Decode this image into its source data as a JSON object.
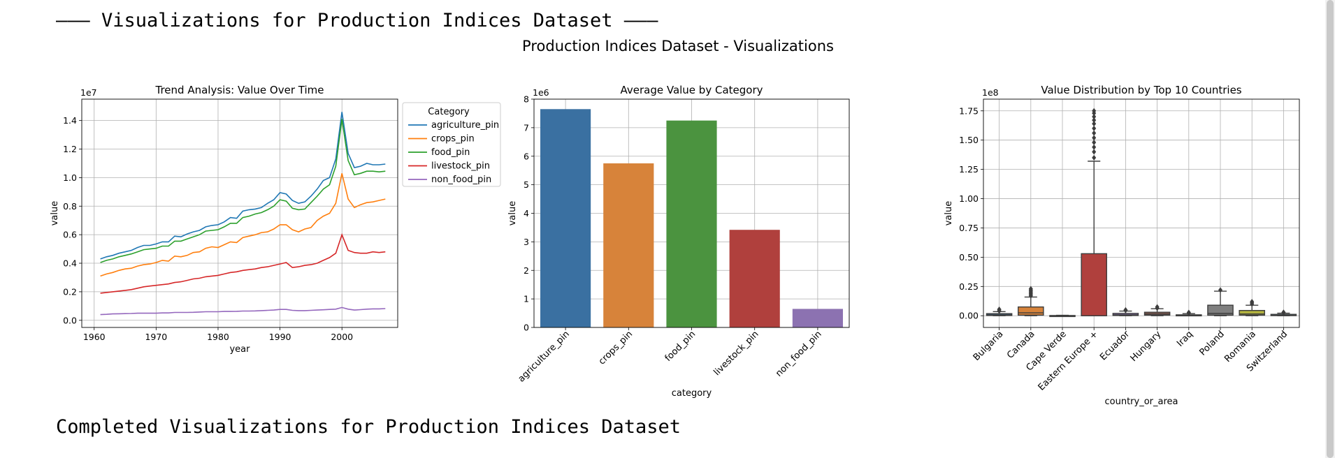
{
  "header": {
    "text": "——— Visualizations for Production Indices Dataset ———"
  },
  "footer": {
    "text": "Completed Visualizations for Production Indices Dataset"
  },
  "figure": {
    "suptitle": "Production Indices Dataset - Visualizations"
  },
  "chart_data": [
    {
      "type": "line",
      "title": "Trend Analysis: Value Over Time",
      "xlabel": "year",
      "ylabel": "value",
      "offset_label": "1e7",
      "xlim": [
        1958,
        2009
      ],
      "ylim": [
        -0.05,
        1.55
      ],
      "x_ticks": [
        1960,
        1970,
        1980,
        1990,
        2000
      ],
      "y_ticks": [
        0.0,
        0.2,
        0.4,
        0.6,
        0.8,
        1.0,
        1.2,
        1.4
      ],
      "y_tick_labels": [
        "0.0",
        "0.2",
        "0.4",
        "0.6",
        "0.8",
        "1.0",
        "1.2",
        "1.4"
      ],
      "grid": true,
      "legend": {
        "title": "Category",
        "placement": "outside right"
      },
      "x": [
        1961,
        1962,
        1963,
        1964,
        1965,
        1966,
        1967,
        1968,
        1969,
        1970,
        1971,
        1972,
        1973,
        1974,
        1975,
        1976,
        1977,
        1978,
        1979,
        1980,
        1981,
        1982,
        1983,
        1984,
        1985,
        1986,
        1987,
        1988,
        1989,
        1990,
        1991,
        1992,
        1993,
        1994,
        1995,
        1996,
        1997,
        1998,
        1999,
        2000,
        2001,
        2002,
        2003,
        2004,
        2005,
        2006,
        2007
      ],
      "series": [
        {
          "name": "agriculture_pin",
          "color": "#1f77b4",
          "values": [
            0.43,
            0.445,
            0.455,
            0.47,
            0.48,
            0.49,
            0.51,
            0.525,
            0.525,
            0.535,
            0.55,
            0.55,
            0.59,
            0.585,
            0.605,
            0.62,
            0.63,
            0.655,
            0.665,
            0.67,
            0.69,
            0.72,
            0.715,
            0.765,
            0.775,
            0.78,
            0.79,
            0.82,
            0.845,
            0.895,
            0.885,
            0.84,
            0.82,
            0.83,
            0.87,
            0.92,
            0.98,
            1.0,
            1.13,
            1.46,
            1.17,
            1.07,
            1.08,
            1.1,
            1.09,
            1.09,
            1.095
          ]
        },
        {
          "name": "crops_pin",
          "color": "#ff7f0e",
          "values": [
            0.31,
            0.325,
            0.335,
            0.35,
            0.36,
            0.365,
            0.38,
            0.39,
            0.395,
            0.405,
            0.42,
            0.415,
            0.45,
            0.445,
            0.455,
            0.475,
            0.48,
            0.505,
            0.515,
            0.51,
            0.53,
            0.55,
            0.545,
            0.58,
            0.59,
            0.6,
            0.615,
            0.62,
            0.64,
            0.67,
            0.67,
            0.635,
            0.62,
            0.64,
            0.65,
            0.7,
            0.73,
            0.75,
            0.82,
            1.03,
            0.85,
            0.79,
            0.81,
            0.825,
            0.83,
            0.84,
            0.85
          ]
        },
        {
          "name": "food_pin",
          "color": "#2ca02c",
          "values": [
            0.405,
            0.42,
            0.43,
            0.445,
            0.455,
            0.465,
            0.48,
            0.495,
            0.5,
            0.505,
            0.52,
            0.52,
            0.555,
            0.555,
            0.57,
            0.585,
            0.6,
            0.625,
            0.63,
            0.635,
            0.655,
            0.68,
            0.68,
            0.72,
            0.73,
            0.745,
            0.755,
            0.775,
            0.8,
            0.845,
            0.835,
            0.785,
            0.775,
            0.78,
            0.825,
            0.87,
            0.92,
            0.95,
            1.08,
            1.41,
            1.12,
            1.02,
            1.03,
            1.045,
            1.045,
            1.04,
            1.045
          ]
        },
        {
          "name": "livestock_pin",
          "color": "#d62728",
          "values": [
            0.19,
            0.195,
            0.2,
            0.205,
            0.21,
            0.215,
            0.225,
            0.235,
            0.24,
            0.245,
            0.25,
            0.255,
            0.265,
            0.27,
            0.28,
            0.29,
            0.295,
            0.305,
            0.31,
            0.315,
            0.325,
            0.335,
            0.34,
            0.35,
            0.355,
            0.36,
            0.37,
            0.375,
            0.385,
            0.395,
            0.405,
            0.37,
            0.375,
            0.385,
            0.39,
            0.4,
            0.42,
            0.44,
            0.47,
            0.6,
            0.49,
            0.475,
            0.47,
            0.47,
            0.48,
            0.475,
            0.48
          ]
        },
        {
          "name": "non_food_pin",
          "color": "#9467bd",
          "values": [
            0.04,
            0.042,
            0.045,
            0.046,
            0.047,
            0.048,
            0.05,
            0.05,
            0.05,
            0.05,
            0.052,
            0.052,
            0.055,
            0.055,
            0.055,
            0.056,
            0.058,
            0.06,
            0.06,
            0.06,
            0.062,
            0.062,
            0.063,
            0.065,
            0.065,
            0.066,
            0.068,
            0.07,
            0.072,
            0.076,
            0.076,
            0.07,
            0.068,
            0.068,
            0.07,
            0.072,
            0.074,
            0.076,
            0.078,
            0.09,
            0.078,
            0.072,
            0.075,
            0.078,
            0.08,
            0.08,
            0.082
          ]
        }
      ]
    },
    {
      "type": "bar",
      "title": "Average Value by Category",
      "xlabel": "category",
      "ylabel": "value",
      "offset_label": "1e6",
      "ylim": [
        0,
        8
      ],
      "y_ticks": [
        0,
        1,
        2,
        3,
        4,
        5,
        6,
        7,
        8
      ],
      "grid": true,
      "categories": [
        "agriculture_pin",
        "crops_pin",
        "food_pin",
        "livestock_pin",
        "non_food_pin"
      ],
      "values": [
        7.65,
        5.75,
        7.25,
        3.42,
        0.65
      ],
      "colors": [
        "#3a70a1",
        "#d7833a",
        "#4b933f",
        "#b0403d",
        "#8c72b1"
      ]
    },
    {
      "type": "box",
      "title": "Value Distribution by Top 10 Countries",
      "xlabel": "country_or_area",
      "ylabel": "value",
      "offset_label": "1e8",
      "ylim": [
        -0.1,
        1.85
      ],
      "y_ticks": [
        0.0,
        0.25,
        0.5,
        0.75,
        1.0,
        1.25,
        1.5,
        1.75
      ],
      "y_tick_labels": [
        "0.00",
        "0.25",
        "0.50",
        "0.75",
        "1.00",
        "1.25",
        "1.50",
        "1.75"
      ],
      "grid": true,
      "categories": [
        "Bulgaria",
        "Canada",
        "Cape Verde",
        "Eastern Europe +",
        "Ecuador",
        "Hungary",
        "Iraq",
        "Poland",
        "Romania",
        "Switzerland"
      ],
      "colors": [
        "#3a70a1",
        "#d7833a",
        "#4b933f",
        "#b0403d",
        "#8c72b1",
        "#8a5a4e",
        "#d184bd",
        "#7f7f7f",
        "#b3b340",
        "#3aa9b6"
      ],
      "boxes": [
        {
          "q1": 0.002,
          "median": 0.008,
          "q3": 0.018,
          "whisker_low": 0.0,
          "whisker_high": 0.035,
          "outliers": [
            0.04,
            0.05,
            0.055
          ]
        },
        {
          "q1": 0.005,
          "median": 0.025,
          "q3": 0.075,
          "whisker_low": 0.0,
          "whisker_high": 0.16,
          "outliers": [
            0.17,
            0.18,
            0.19,
            0.2,
            0.21,
            0.22,
            0.23
          ]
        },
        {
          "q1": 0.0,
          "median": 0.0,
          "q3": 0.002,
          "whisker_low": 0.0,
          "whisker_high": 0.004,
          "outliers": []
        },
        {
          "q1": 0.0,
          "median": 0.0,
          "q3": 0.53,
          "whisker_low": 0.0,
          "whisker_high": 1.32,
          "outliers": [
            1.35,
            1.4,
            1.44,
            1.48,
            1.52,
            1.56,
            1.6,
            1.64,
            1.67,
            1.7,
            1.73,
            1.75
          ]
        },
        {
          "q1": 0.002,
          "median": 0.008,
          "q3": 0.02,
          "whisker_low": 0.0,
          "whisker_high": 0.04,
          "outliers": [
            0.045,
            0.05
          ]
        },
        {
          "q1": 0.005,
          "median": 0.015,
          "q3": 0.03,
          "whisker_low": 0.0,
          "whisker_high": 0.06,
          "outliers": [
            0.065,
            0.075
          ]
        },
        {
          "q1": 0.0,
          "median": 0.003,
          "q3": 0.008,
          "whisker_low": 0.0,
          "whisker_high": 0.018,
          "outliers": [
            0.022,
            0.028
          ]
        },
        {
          "q1": 0.005,
          "median": 0.02,
          "q3": 0.09,
          "whisker_low": 0.0,
          "whisker_high": 0.21,
          "outliers": [
            0.22
          ]
        },
        {
          "q1": 0.005,
          "median": 0.015,
          "q3": 0.045,
          "whisker_low": 0.0,
          "whisker_high": 0.09,
          "outliers": [
            0.1,
            0.11,
            0.12
          ]
        },
        {
          "q1": 0.001,
          "median": 0.004,
          "q3": 0.012,
          "whisker_low": 0.0,
          "whisker_high": 0.022,
          "outliers": [
            0.026,
            0.03
          ]
        }
      ]
    }
  ]
}
